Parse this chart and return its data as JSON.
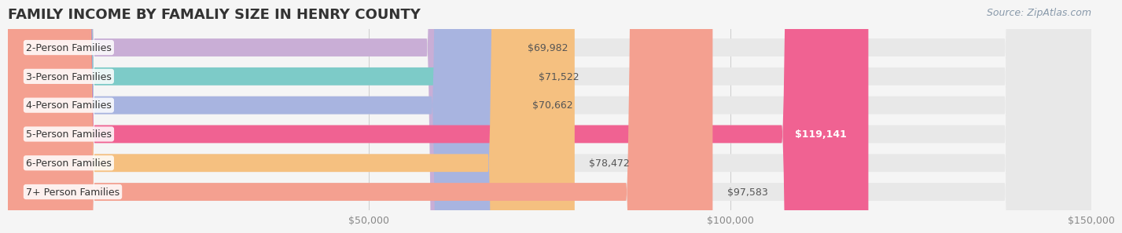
{
  "title": "FAMILY INCOME BY FAMALIY SIZE IN HENRY COUNTY",
  "source": "Source: ZipAtlas.com",
  "categories": [
    "2-Person Families",
    "3-Person Families",
    "4-Person Families",
    "5-Person Families",
    "6-Person Families",
    "7+ Person Families"
  ],
  "values": [
    69982,
    71522,
    70662,
    119141,
    78472,
    97583
  ],
  "bar_colors": [
    "#c9aed6",
    "#7dcbc8",
    "#a8b4e0",
    "#f06292",
    "#f5c080",
    "#f4a090"
  ],
  "value_labels": [
    "$69,982",
    "$71,522",
    "$70,662",
    "$119,141",
    "$78,472",
    "$97,583"
  ],
  "value_label_colors": [
    "#555555",
    "#555555",
    "#555555",
    "#ffffff",
    "#555555",
    "#555555"
  ],
  "bg_color": "#f5f5f5",
  "bar_bg_color": "#e8e8e8",
  "xmin": 0,
  "xmax": 150000,
  "xticks": [
    0,
    50000,
    100000,
    150000
  ],
  "xtick_labels": [
    "",
    "$50,000",
    "$100,000",
    "$150,000"
  ],
  "title_fontsize": 13,
  "label_fontsize": 9,
  "value_fontsize": 9,
  "source_fontsize": 9
}
